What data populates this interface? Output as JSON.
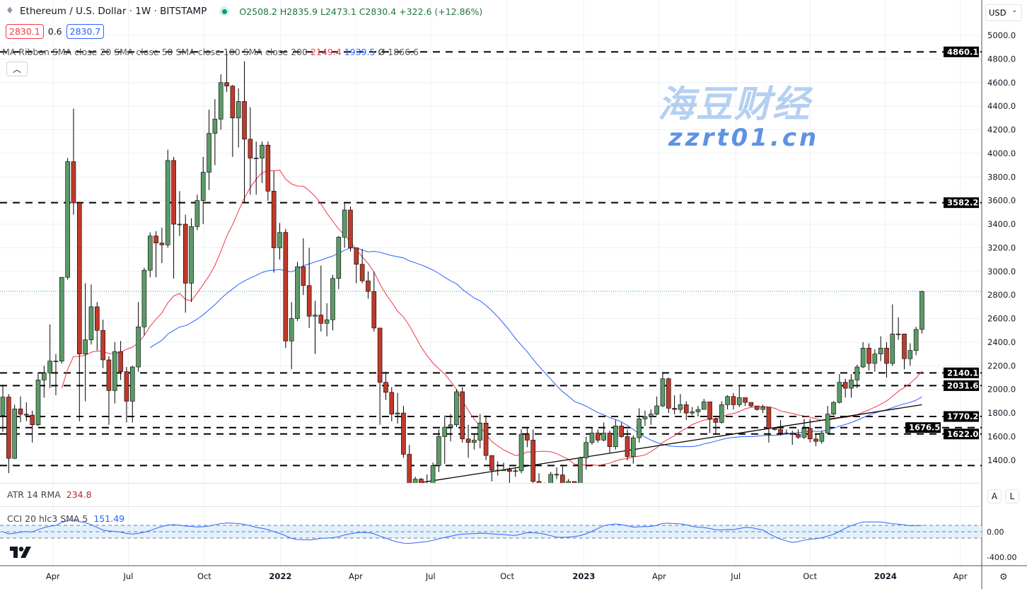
{
  "header": {
    "title": "Ethereum / U.S. Dollar · 1W · BITSTAMP",
    "ohlc": "O2508.2 H2835.9 L2473.1 C2830.4 +322.6 (+12.86%)",
    "bid": "2830.1",
    "spread": "0.6",
    "ask": "2830.7",
    "ma_ribbon_label": "MA Ribbon SMA close 20 SMA close 50 SMA close 100 SMA close 200",
    "ma_values": [
      {
        "value": "2149.4",
        "color": "#f23645"
      },
      {
        "value": "1939.5",
        "color": "#2962ff"
      },
      {
        "value": "Ø",
        "color": "#333333"
      },
      {
        "value": "1866.6",
        "color": "#131722"
      }
    ],
    "collapse_icon": "chevron-up-icon"
  },
  "currency": "USD",
  "scale_buttons": [
    "A",
    "L"
  ],
  "atr": {
    "label": "ATR 14 RMA",
    "value": "234.8",
    "color": "#b22833"
  },
  "cci": {
    "label": "CCI 20 hlc3 SMA 5",
    "value": "151.49",
    "color": "#2962ff",
    "axis_labels": [
      "0.00",
      "-400.00"
    ]
  },
  "watermark": {
    "cn": "海豆财经",
    "url": "zzrt01.cn"
  },
  "colors": {
    "up": "#22ab94",
    "down": "#f23645",
    "up_body": "#5b9a68",
    "down_body": "#c0392b",
    "sma20": "#f23645",
    "sma50": "#2962ff"
  },
  "chart_data": {
    "type": "candlestick",
    "interval": "1W",
    "first_week": "2021-02-15",
    "first_open": 1780,
    "close": [
      1935,
      1416,
      1835,
      1789,
      1782,
      1700,
      2080,
      2140,
      2240,
      2240,
      2950,
      3930,
      3580,
      2300,
      2420,
      2700,
      2500,
      2250,
      1990,
      2320,
      2150,
      1900,
      2190,
      2530,
      3010,
      3300,
      3240,
      3225,
      3940,
      3400,
      3400,
      2900,
      3380,
      3600,
      3840,
      4170,
      4290,
      4600,
      4570,
      4300,
      4440,
      4120,
      3960,
      3960,
      4070,
      3680,
      3200,
      3330,
      2410,
      2600,
      3040,
      2880,
      2620,
      2630,
      2560,
      2590,
      2940,
      3290,
      3520,
      3200,
      3060,
      2920,
      2830,
      2520,
      2060,
      1975,
      1790,
      1800,
      1450,
      1120,
      1240,
      1075,
      1165,
      1355,
      1600,
      1680,
      1700,
      1980,
      1580,
      1550,
      1570,
      1715,
      1440,
      1315,
      1310,
      1320,
      1305,
      1310,
      1620,
      1570,
      1220,
      1200,
      1170,
      1280,
      1275,
      1185,
      1220,
      1195,
      1420,
      1550,
      1630,
      1570,
      1630,
      1515,
      1690,
      1600,
      1430,
      1590,
      1750,
      1770,
      1790,
      1860,
      2090,
      1840,
      1830,
      1870,
      1800,
      1810,
      1830,
      1895,
      1750,
      1720,
      1870,
      1940,
      1870,
      1930,
      1890,
      1860,
      1830,
      1850,
      1670,
      1660,
      1630,
      1630,
      1620,
      1595,
      1670,
      1580,
      1560,
      1630,
      1790,
      1890,
      2060,
      2010,
      2080,
      2190,
      2350,
      2220,
      2300,
      2350,
      2220,
      2470,
      2470,
      2260,
      2330,
      2508.2,
      2830.4
    ],
    "high": [
      2040,
      1960,
      1870,
      1940,
      1890,
      1820,
      2145,
      2200,
      2550,
      2300,
      2950,
      3960,
      4380,
      3590,
      2900,
      2890,
      2740,
      2590,
      2280,
      2400,
      2410,
      2190,
      2200,
      2740,
      3030,
      3330,
      3340,
      3370,
      4030,
      3970,
      3680,
      3480,
      3450,
      3650,
      3970,
      4370,
      4460,
      4670,
      4868,
      4580,
      4550,
      4780,
      4390,
      4100,
      4100,
      4100,
      3850,
      3410,
      3360,
      2740,
      3080,
      3280,
      3200,
      2750,
      3050,
      2730,
      2970,
      3300,
      3580,
      3550,
      3200,
      3190,
      3000,
      3000,
      2520,
      2150,
      2020,
      1970,
      1860,
      1530,
      1260,
      1250,
      1280,
      1380,
      1660,
      1780,
      1790,
      2000,
      2020,
      1700,
      1620,
      1790,
      1780,
      1400,
      1390,
      1380,
      1340,
      1340,
      1660,
      1680,
      1660,
      1290,
      1210,
      1300,
      1340,
      1350,
      1240,
      1220,
      1430,
      1600,
      1680,
      1660,
      1720,
      1650,
      1740,
      1720,
      1660,
      1610,
      1840,
      1820,
      1830,
      1940,
      2140,
      2100,
      1950,
      1960,
      1900,
      1850,
      1860,
      1920,
      1890,
      1760,
      1900,
      1950,
      1970,
      2030,
      1930,
      1890,
      1860,
      1870,
      1850,
      1680,
      1740,
      1660,
      1650,
      1660,
      1750,
      1750,
      1620,
      1650,
      1860,
      1900,
      2130,
      2090,
      2130,
      2210,
      2400,
      2390,
      2340,
      2450,
      2400,
      2720,
      2610,
      2470,
      2390,
      2530,
      2835.9
    ],
    "low": [
      1640,
      1290,
      1410,
      1720,
      1730,
      1550,
      1690,
      1930,
      2010,
      1950,
      2220,
      2930,
      3480,
      1730,
      1900,
      2380,
      2330,
      2180,
      1700,
      1880,
      2080,
      1720,
      1720,
      2150,
      2460,
      2950,
      2950,
      3070,
      3200,
      2940,
      3300,
      2650,
      2740,
      3350,
      3400,
      3690,
      3900,
      4200,
      4520,
      3970,
      4050,
      3580,
      3650,
      3650,
      3750,
      3600,
      2990,
      3100,
      2350,
      2170,
      2580,
      2800,
      2520,
      2300,
      2490,
      2450,
      2500,
      2850,
      3200,
      3170,
      2900,
      2900,
      2770,
      2490,
      1700,
      1910,
      1730,
      1710,
      1420,
      880,
      1050,
      1000,
      1050,
      1000,
      1300,
      1370,
      1560,
      1680,
      1550,
      1420,
      1490,
      1500,
      1400,
      1220,
      1270,
      1310,
      1190,
      1260,
      1290,
      1510,
      1080,
      1170,
      1080,
      1180,
      1240,
      1160,
      1170,
      1190,
      1195,
      1320,
      1530,
      1550,
      1560,
      1460,
      1490,
      1590,
      1400,
      1370,
      1550,
      1690,
      1700,
      1780,
      1850,
      1800,
      1790,
      1800,
      1740,
      1780,
      1770,
      1830,
      1630,
      1620,
      1710,
      1830,
      1830,
      1850,
      1860,
      1850,
      1820,
      1800,
      1550,
      1650,
      1610,
      1620,
      1530,
      1580,
      1580,
      1550,
      1520,
      1540,
      1630,
      1780,
      1880,
      1930,
      1930,
      2010,
      2180,
      2160,
      2150,
      2240,
      2100,
      2200,
      2420,
      2170,
      2200,
      2290,
      2473.1
    ],
    "sma_periods": [
      20,
      50
    ],
    "horizontal_levels": [
      4860.1,
      3582.2,
      2140.1,
      2031.6,
      1770.2,
      1676.5,
      1622.0,
      1355
    ],
    "labeled_levels": [
      "4860.1",
      "3582.2",
      "2140.1",
      "2031.6",
      "1770.2",
      "1676.5",
      "1622.0"
    ],
    "trendline": [
      {
        "week_index": 71,
        "price": 1211
      },
      {
        "week_index": 156,
        "price": 1870
      }
    ],
    "last_price": 2830.4,
    "y_ticks": [
      "5000.0",
      "4800.0",
      "4600.0",
      "4400.0",
      "4200.0",
      "4000.0",
      "3800.0",
      "3600.0",
      "3400.0",
      "3200.0",
      "3000.0",
      "2800.0",
      "2600.0",
      "2400.0",
      "2200.0",
      "2000.0",
      "1800.0",
      "1600.0",
      "1400.0"
    ],
    "x_ticks": [
      {
        "label": "Apr",
        "week_index": 8.5
      },
      {
        "label": "Jul",
        "week_index": 21.3
      },
      {
        "label": "Oct",
        "week_index": 34.2
      },
      {
        "label": "2022",
        "week_index": 47.1
      },
      {
        "label": "Apr",
        "week_index": 59.9
      },
      {
        "label": "Jul",
        "week_index": 72.6
      },
      {
        "label": "Oct",
        "week_index": 85.6
      },
      {
        "label": "2023",
        "week_index": 98.6
      },
      {
        "label": "Apr",
        "week_index": 111.4
      },
      {
        "label": "Jul",
        "week_index": 124.4
      },
      {
        "label": "Oct",
        "week_index": 137.0
      },
      {
        "label": "2024",
        "week_index": 149.8
      },
      {
        "label": "Apr",
        "week_index": 162.5
      }
    ],
    "bold_x_ticks": [
      "2022",
      "2023",
      "2024"
    ]
  }
}
